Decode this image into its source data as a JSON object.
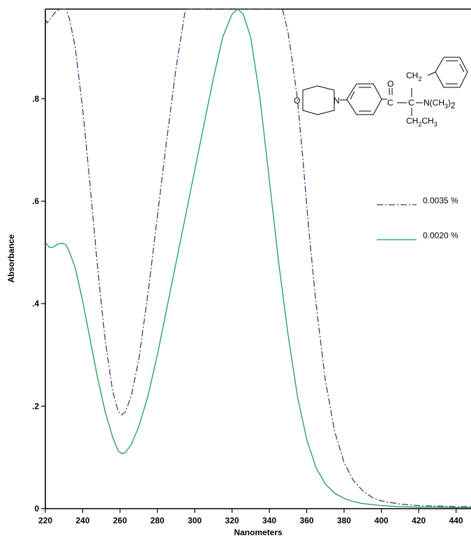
{
  "chart_data": {
    "type": "line",
    "xlabel": "Nanometers",
    "ylabel": "Absorbance",
    "xlim": [
      220,
      448
    ],
    "ylim": [
      0,
      0.975
    ],
    "x_ticks": [
      {
        "value": 220,
        "label": "220"
      },
      {
        "value": 240,
        "label": "240"
      },
      {
        "value": 260,
        "label": "260"
      },
      {
        "value": 280,
        "label": "280"
      },
      {
        "value": 300,
        "label": "300"
      },
      {
        "value": 320,
        "label": "320"
      },
      {
        "value": 340,
        "label": "340"
      },
      {
        "value": 360,
        "label": "360"
      },
      {
        "value": 380,
        "label": "380"
      },
      {
        "value": 400,
        "label": "400"
      },
      {
        "value": 420,
        "label": "420"
      },
      {
        "value": 440,
        "label": "440"
      }
    ],
    "y_ticks": [
      {
        "value": 0,
        "label": "0"
      },
      {
        "value": 0.2,
        "label": ".2"
      },
      {
        "value": 0.4,
        "label": ".4"
      },
      {
        "value": 0.6,
        "label": ".6"
      },
      {
        "value": 0.8,
        "label": ".8"
      }
    ],
    "grid": false,
    "legend_position": "right",
    "series": [
      {
        "name": "0.0035 %",
        "color": "#3a3a7a",
        "dash": "dashdot",
        "x": [
          220,
          221,
          223,
          226,
          229,
          231,
          233,
          236,
          240,
          244,
          248,
          252,
          256,
          259,
          261,
          263,
          266,
          270,
          275,
          280,
          285,
          290,
          295,
          300,
          320,
          340,
          347,
          350,
          352,
          355,
          358,
          361,
          365,
          370,
          375,
          380,
          385,
          390,
          395,
          400,
          410,
          420,
          430,
          440,
          448
        ],
        "y": [
          0.955,
          0.948,
          0.958,
          0.972,
          0.975,
          0.975,
          0.955,
          0.9,
          0.78,
          0.63,
          0.47,
          0.33,
          0.23,
          0.19,
          0.183,
          0.19,
          0.22,
          0.29,
          0.42,
          0.57,
          0.72,
          0.86,
          0.975,
          0.975,
          0.975,
          0.975,
          0.975,
          0.93,
          0.88,
          0.8,
          0.68,
          0.55,
          0.4,
          0.25,
          0.15,
          0.09,
          0.055,
          0.035,
          0.022,
          0.015,
          0.009,
          0.006,
          0.005,
          0.004,
          0.004
        ]
      },
      {
        "name": "0.0020 %",
        "color": "#1a9a5a",
        "dash": "solid",
        "x": [
          220,
          222,
          224,
          227,
          229,
          231,
          233,
          236,
          240,
          244,
          248,
          252,
          256,
          259,
          261,
          263,
          266,
          270,
          275,
          280,
          285,
          290,
          295,
          300,
          305,
          310,
          315,
          320,
          323,
          326,
          330,
          335,
          340,
          345,
          350,
          355,
          360,
          365,
          370,
          375,
          380,
          385,
          390,
          395,
          400,
          410,
          420,
          430,
          440,
          448
        ],
        "y": [
          0.52,
          0.51,
          0.51,
          0.517,
          0.518,
          0.515,
          0.5,
          0.47,
          0.405,
          0.33,
          0.255,
          0.19,
          0.14,
          0.113,
          0.107,
          0.11,
          0.125,
          0.16,
          0.22,
          0.3,
          0.39,
          0.48,
          0.57,
          0.66,
          0.75,
          0.84,
          0.92,
          0.965,
          0.975,
          0.965,
          0.92,
          0.8,
          0.64,
          0.48,
          0.34,
          0.22,
          0.135,
          0.08,
          0.048,
          0.03,
          0.02,
          0.014,
          0.01,
          0.008,
          0.006,
          0.004,
          0.003,
          0.003,
          0.002,
          0.002
        ]
      }
    ],
    "structure_labels": {
      "o_ring": "O",
      "n_ring": "N",
      "carbonyl_o": "O",
      "carbonyl_c": "C",
      "quat_c": "C",
      "ch2": "CH",
      "ch2_sub": "2",
      "nme2": "N(CH",
      "nme2_sub": "3",
      "nme2_close": ")",
      "nme2_tail": "2",
      "ethyl_ch2": "CH",
      "ethyl_ch2_sub": "2",
      "ethyl_ch3": "CH",
      "ethyl_ch3_sub": "3"
    }
  }
}
